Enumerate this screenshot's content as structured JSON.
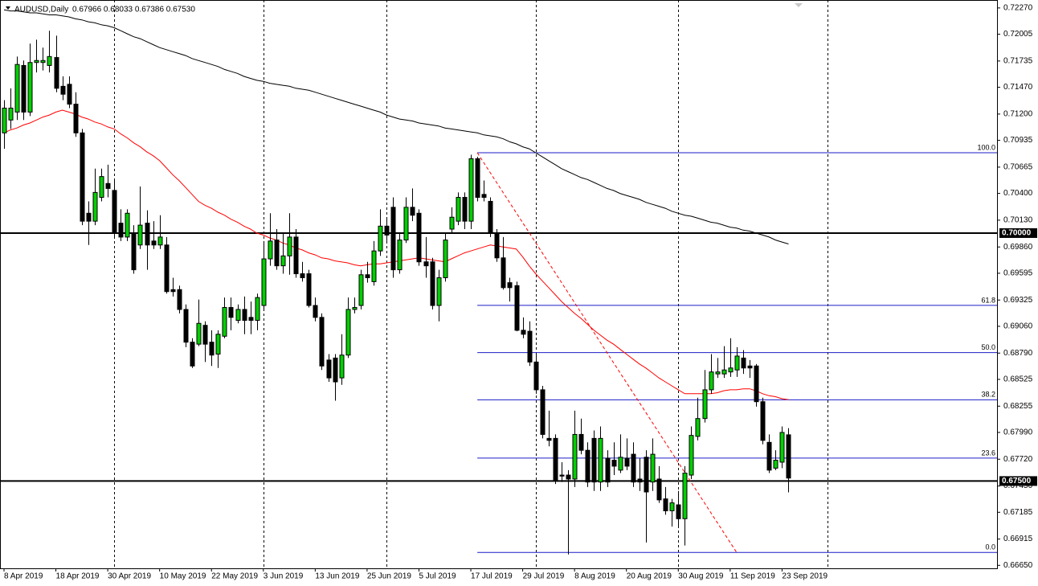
{
  "chart_data": {
    "type": "candlestick",
    "title": "AUDUSD,Daily",
    "subtitle": "0.67966 0.68033 0.67386 0.67530",
    "up_color": "#00d000",
    "down_color": "#000000",
    "categories": [
      "8 Apr 2019",
      null,
      null,
      null,
      null,
      null,
      null,
      null,
      "18 Apr 2019",
      null,
      null,
      null,
      null,
      null,
      null,
      null,
      "30 Apr 2019",
      null,
      null,
      null,
      null,
      null,
      null,
      null,
      "10 May 2019",
      null,
      null,
      null,
      null,
      null,
      null,
      null,
      "22 May 2019",
      null,
      null,
      null,
      null,
      null,
      null,
      null,
      "3 Jun 2019",
      null,
      null,
      null,
      null,
      null,
      null,
      null,
      "13 Jun 2019",
      null,
      null,
      null,
      null,
      null,
      null,
      null,
      "25 Jun 2019",
      null,
      null,
      null,
      null,
      null,
      null,
      null,
      "5 Jul 2019",
      null,
      null,
      null,
      null,
      null,
      null,
      null,
      "17 Jul 2019",
      null,
      null,
      null,
      null,
      null,
      null,
      null,
      "29 Jul 2019",
      null,
      null,
      null,
      null,
      null,
      null,
      null,
      "8 Aug 2019",
      null,
      null,
      null,
      null,
      null,
      null,
      null,
      "20 Aug 2019",
      null,
      null,
      null,
      null,
      null,
      null,
      null,
      "30 Aug 2019",
      null,
      null,
      null,
      null,
      null,
      null,
      null,
      "11 Sep 2019",
      null,
      null,
      null,
      null,
      null,
      null,
      null,
      "23 Sep 2019",
      null
    ],
    "open": [
      0.7101,
      0.7114,
      0.7122,
      0.7169,
      0.7122,
      0.7172,
      0.7172,
      0.7169,
      0.7177,
      0.7148,
      0.715,
      0.713,
      0.7101,
      0.702,
      0.7012,
      0.7036,
      0.705,
      0.7043,
      0.701,
      0.6996,
      0.7,
      0.6988,
      0.701,
      0.6992,
      0.6988,
      0.6988,
      0.6943,
      0.6943,
      0.6923,
      0.689,
      0.6888,
      0.6907,
      0.689,
      0.6878,
      0.6896,
      0.6925,
      0.6912,
      0.6923,
      0.6915,
      0.6912,
      0.6927,
      0.6974,
      0.6993,
      0.6967,
      0.6977,
      0.6996,
      0.6959,
      0.6959,
      0.6927,
      0.6915,
      0.6872,
      0.6874,
      0.6854,
      0.6877,
      0.6923,
      0.6927,
      0.6958,
      0.6951,
      0.6982,
      0.7007,
      0.7026,
      0.6963,
      0.6993,
      0.7026,
      0.702,
      0.6971,
      0.6971,
      0.6927,
      0.6955,
      0.7004,
      0.7012,
      0.7036,
      0.7012,
      0.7075,
      0.7039,
      0.7032,
      0.7,
      0.6975,
      0.695,
      0.6947,
      0.6902,
      0.6901,
      0.687,
      0.6842,
      0.6793,
      0.6793,
      0.6756,
      0.6756,
      0.6752,
      0.6797,
      0.6781,
      0.6793,
      0.6749,
      0.6773,
      0.6771,
      0.6761,
      0.6773,
      0.6777,
      0.6752,
      0.6774,
      0.6749,
      0.6752,
      0.6732,
      0.672,
      0.6726,
      0.6712,
      0.6756,
      0.6795,
      0.6813,
      0.6842,
      0.6858,
      0.6858,
      0.686,
      0.6862,
      0.6874,
      0.6866,
      0.6866,
      0.683,
      0.6789,
      0.6763,
      0.6769,
      0.67966
    ],
    "high": [
      0.7134,
      0.7146,
      0.7178,
      0.7174,
      0.7191,
      0.7195,
      0.7187,
      0.7204,
      0.7199,
      0.7158,
      0.7158,
      0.7142,
      0.7105,
      0.7032,
      0.7065,
      0.7065,
      0.7069,
      0.7053,
      0.7024,
      0.7024,
      0.7008,
      0.7047,
      0.7023,
      0.7012,
      0.7018,
      0.6996,
      0.6955,
      0.6947,
      0.6928,
      0.6894,
      0.6933,
      0.6911,
      0.6902,
      0.6902,
      0.6935,
      0.6935,
      0.6928,
      0.6936,
      0.6931,
      0.6939,
      0.6992,
      0.702,
      0.7004,
      0.7,
      0.702,
      0.7004,
      0.6971,
      0.6963,
      0.6935,
      0.6919,
      0.6878,
      0.6878,
      0.6898,
      0.6935,
      0.6935,
      0.6963,
      0.6971,
      0.6992,
      0.7024,
      0.7016,
      0.7036,
      0.7,
      0.7036,
      0.7045,
      0.7024,
      0.6996,
      0.6975,
      0.6963,
      0.7,
      0.7026,
      0.7041,
      0.7041,
      0.7079,
      0.7077,
      0.7053,
      0.7036,
      0.7004,
      0.6996,
      0.6955,
      0.6951,
      0.6915,
      0.6911,
      0.6878,
      0.6846,
      0.6821,
      0.6797,
      0.6769,
      0.6761,
      0.6821,
      0.6813,
      0.6789,
      0.6801,
      0.6805,
      0.6781,
      0.6789,
      0.6797,
      0.6793,
      0.6789,
      0.6773,
      0.6781,
      0.6793,
      0.6765,
      0.6744,
      0.6732,
      0.674,
      0.6765,
      0.6805,
      0.6834,
      0.6862,
      0.6878,
      0.6874,
      0.6886,
      0.6894,
      0.6885,
      0.6882,
      0.6872,
      0.6868,
      0.6834,
      0.6797,
      0.6781,
      0.6805,
      0.68033
    ],
    "low": [
      0.7085,
      0.7105,
      0.7114,
      0.7114,
      0.7118,
      0.7162,
      0.7164,
      0.7162,
      0.7142,
      0.7134,
      0.7126,
      0.7097,
      0.7008,
      0.6988,
      0.7008,
      0.7032,
      0.7036,
      0.6996,
      0.6992,
      0.6992,
      0.6959,
      0.6984,
      0.6963,
      0.6984,
      0.6984,
      0.6939,
      0.6936,
      0.6919,
      0.6885,
      0.6864,
      0.6886,
      0.687,
      0.6866,
      0.6864,
      0.6894,
      0.6902,
      0.6909,
      0.6898,
      0.6898,
      0.6902,
      0.6923,
      0.6967,
      0.6963,
      0.6959,
      0.6958,
      0.6955,
      0.6951,
      0.6925,
      0.6911,
      0.6862,
      0.685,
      0.6831,
      0.6847,
      0.6874,
      0.6919,
      0.6923,
      0.695,
      0.6947,
      0.6977,
      0.6992,
      0.6955,
      0.6959,
      0.699,
      0.7012,
      0.6967,
      0.6955,
      0.6923,
      0.6911,
      0.6951,
      0.7,
      0.7008,
      0.7004,
      0.7004,
      0.7032,
      0.7032,
      0.6996,
      0.6971,
      0.6943,
      0.6931,
      0.6901,
      0.6894,
      0.6866,
      0.6838,
      0.6793,
      0.6785,
      0.6747,
      0.6749,
      0.6676,
      0.6744,
      0.6777,
      0.6744,
      0.674,
      0.674,
      0.6744,
      0.6756,
      0.6758,
      0.6761,
      0.6744,
      0.674,
      0.6688,
      0.674,
      0.6728,
      0.6716,
      0.6704,
      0.6704,
      0.6685,
      0.6752,
      0.6791,
      0.6809,
      0.6838,
      0.6854,
      0.6854,
      0.6855,
      0.6855,
      0.6858,
      0.6854,
      0.6825,
      0.6787,
      0.6758,
      0.6761,
      0.6763,
      0.67386
    ],
    "close": [
      0.7126,
      0.7126,
      0.717,
      0.7122,
      0.7172,
      0.7174,
      0.7174,
      0.7178,
      0.7146,
      0.714,
      0.713,
      0.7101,
      0.7012,
      0.7012,
      0.7041,
      0.7057,
      0.7045,
      0.7,
      0.6996,
      0.702,
      0.6963,
      0.7008,
      0.6988,
      0.6988,
      0.6996,
      0.6941,
      0.6941,
      0.6923,
      0.689,
      0.6866,
      0.6909,
      0.6888,
      0.6877,
      0.6898,
      0.6925,
      0.6915,
      0.6923,
      0.6912,
      0.6912,
      0.6935,
      0.6974,
      0.6992,
      0.6967,
      0.6977,
      0.6996,
      0.6959,
      0.6955,
      0.6927,
      0.6915,
      0.6866,
      0.6854,
      0.685,
      0.6877,
      0.6923,
      0.6925,
      0.6958,
      0.6955,
      0.6982,
      0.7007,
      0.6998,
      0.6963,
      0.6993,
      0.7026,
      0.7018,
      0.6971,
      0.6967,
      0.6927,
      0.6955,
      0.6993,
      0.7016,
      0.7036,
      0.7012,
      0.7075,
      0.7036,
      0.7036,
      0.7,
      0.6975,
      0.6945,
      0.6945,
      0.6902,
      0.6898,
      0.687,
      0.6842,
      0.6797,
      0.6791,
      0.675,
      0.6755,
      0.6752,
      0.6797,
      0.6781,
      0.6749,
      0.6749,
      0.6793,
      0.6749,
      0.6765,
      0.6774,
      0.6765,
      0.6749,
      0.6749,
      0.6739,
      0.6777,
      0.6731,
      0.672,
      0.6728,
      0.6712,
      0.6758,
      0.6796,
      0.6813,
      0.6842,
      0.686,
      0.686,
      0.6862,
      0.6864,
      0.6876,
      0.6864,
      0.6864,
      0.683,
      0.6791,
      0.6761,
      0.6771,
      0.6799,
      0.6753
    ],
    "lines": [
      {
        "color": "#ff0000",
        "values": [
          0.7101,
          0.7104,
          0.7106,
          0.7109,
          0.7111,
          0.7114,
          0.7117,
          0.7119,
          0.7122,
          0.7124,
          0.7122,
          0.712,
          0.7117,
          0.7115,
          0.7112,
          0.711,
          0.7107,
          0.7105,
          0.71,
          0.7096,
          0.7091,
          0.7087,
          0.7082,
          0.7078,
          0.7073,
          0.7066,
          0.7059,
          0.7053,
          0.7046,
          0.7039,
          0.7032,
          0.7028,
          0.7025,
          0.7021,
          0.7018,
          0.7014,
          0.7011,
          0.7007,
          0.7004,
          0.7,
          0.6998,
          0.6995,
          0.6993,
          0.699,
          0.6988,
          0.6985,
          0.6983,
          0.698,
          0.6978,
          0.6975,
          0.6974,
          0.6972,
          0.6971,
          0.697,
          0.6968,
          0.6967,
          0.6968,
          0.6969,
          0.6969,
          0.697,
          0.6971,
          0.6972,
          0.6973,
          0.6974,
          0.6975,
          0.6974,
          0.6973,
          0.6972,
          0.6971,
          0.6974,
          0.6977,
          0.698,
          0.6982,
          0.6984,
          0.6986,
          0.6988,
          0.6987,
          0.6986,
          0.6985,
          0.6984,
          0.6976,
          0.6967,
          0.6959,
          0.6952,
          0.6945,
          0.6938,
          0.6931,
          0.6925,
          0.6919,
          0.6914,
          0.6908,
          0.6902,
          0.6897,
          0.6892,
          0.6888,
          0.6883,
          0.6878,
          0.6873,
          0.6868,
          0.6864,
          0.6859,
          0.6854,
          0.685,
          0.6846,
          0.6842,
          0.6838,
          0.6838,
          0.6838,
          0.6838,
          0.6838,
          0.6839,
          0.6841,
          0.6842,
          0.6842,
          0.6843,
          0.6843,
          0.6841,
          0.6838,
          0.6836,
          0.6835,
          0.6833,
          0.6832
        ]
      },
      {
        "color": "#000000",
        "values": [
          0.7225,
          0.7224,
          0.7224,
          0.7223,
          0.7222,
          0.7222,
          0.7221,
          0.722,
          0.722,
          0.7219,
          0.7218,
          0.7216,
          0.7215,
          0.7213,
          0.7212,
          0.721,
          0.7209,
          0.7207,
          0.7204,
          0.7201,
          0.7198,
          0.7196,
          0.7193,
          0.719,
          0.7187,
          0.7185,
          0.7183,
          0.7181,
          0.7179,
          0.7176,
          0.7174,
          0.7172,
          0.717,
          0.7168,
          0.7165,
          0.7163,
          0.7161,
          0.7158,
          0.7156,
          0.7154,
          0.7153,
          0.7151,
          0.715,
          0.7149,
          0.7148,
          0.7146,
          0.7145,
          0.7144,
          0.7142,
          0.714,
          0.7138,
          0.7136,
          0.7134,
          0.7132,
          0.713,
          0.7128,
          0.7126,
          0.7124,
          0.7122,
          0.7119,
          0.7117,
          0.7115,
          0.7114,
          0.7113,
          0.7111,
          0.711,
          0.7109,
          0.7108,
          0.7106,
          0.7105,
          0.7104,
          0.7103,
          0.7102,
          0.7101,
          0.7099,
          0.7098,
          0.7097,
          0.7095,
          0.7092,
          0.709,
          0.7087,
          0.7085,
          0.7081,
          0.7077,
          0.7073,
          0.7069,
          0.7065,
          0.7062,
          0.7059,
          0.7056,
          0.7054,
          0.7051,
          0.7048,
          0.7045,
          0.7043,
          0.704,
          0.7038,
          0.7036,
          0.7034,
          0.7031,
          0.7029,
          0.7027,
          0.7025,
          0.7022,
          0.702,
          0.7018,
          0.7017,
          0.7015,
          0.7013,
          0.7011,
          0.701,
          0.7008,
          0.7006,
          0.7005,
          0.7003,
          0.7002,
          0.7,
          0.6998,
          0.6996,
          0.6993,
          0.6991,
          0.6989
        ]
      }
    ],
    "ylim": [
      0.6662,
      0.7235
    ],
    "yticks": [
      {
        "value": 0.7227,
        "label": "0.72270"
      },
      0.72005,
      0.71735,
      {
        "value": 0.7147,
        "label": "0.71470"
      },
      {
        "value": 0.712,
        "label": "0.71200"
      },
      0.70935,
      0.70665,
      {
        "value": 0.704,
        "label": "0.70400"
      },
      {
        "value": 0.7013,
        "label": "0.70130"
      },
      {
        "value": 0.6986,
        "label": "0.69860"
      },
      0.69595,
      0.69325,
      {
        "value": 0.6906,
        "label": "0.69060"
      },
      {
        "value": 0.6879,
        "label": "0.68790"
      },
      0.68525,
      0.68255,
      {
        "value": 0.6799,
        "label": "0.67990"
      },
      {
        "value": 0.6772,
        "label": "0.67720"
      },
      {
        "value": 0.6745,
        "label": "0.67450"
      },
      0.67185,
      0.66915,
      {
        "value": 0.6665,
        "label": "0.66650"
      }
    ],
    "hlines": [
      {
        "value": 0.7,
        "label": "0.70000"
      },
      {
        "value": 0.675,
        "label": "0.67500"
      }
    ],
    "fibonacci": {
      "color": "#1c1cc8",
      "levels": [
        {
          "value": 0.7081,
          "label": "100.0"
        },
        {
          "value": 0.69271,
          "label": "61.8"
        },
        {
          "value": 0.68795,
          "label": "50.0"
        },
        {
          "value": 0.68319,
          "label": "38.2"
        },
        {
          "value": 0.67731,
          "label": "23.6"
        },
        {
          "value": 0.6678,
          "label": "0.0"
        }
      ]
    },
    "trendline": {
      "start": 0.7081,
      "end": 0.6678,
      "color": "#ff0000"
    }
  }
}
